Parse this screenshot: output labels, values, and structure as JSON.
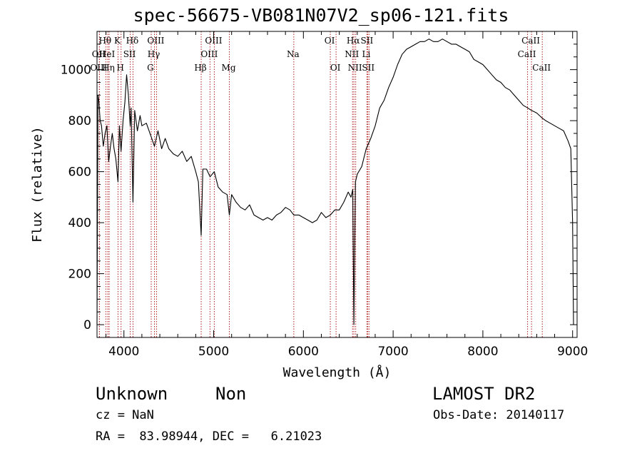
{
  "header": {
    "title": "spec-56675-VB081N07V2_sp06-121.fits"
  },
  "footer": {
    "object_class": "Unknown",
    "object_subclass": "Non",
    "survey": "LAMOST DR2",
    "redshift": "cz = NaN",
    "obs_date": "Obs-Date: 20140117",
    "coords": "RA =  83.98944, DEC =   6.21023"
  },
  "colors": {
    "spectrum": "#000000",
    "line_marker": "#b22222",
    "axes": "#000000"
  },
  "chart_data": {
    "type": "line",
    "title": "spec-56675-VB081N07V2_sp06-121.fits",
    "xlabel": "Wavelength (Å)",
    "ylabel": "Flux (relative)",
    "xlim": [
      3700,
      9050
    ],
    "ylim": [
      -50,
      1150
    ],
    "xticks": [
      4000,
      5000,
      6000,
      7000,
      8000,
      9000
    ],
    "yticks": [
      0,
      200,
      400,
      600,
      800,
      1000
    ],
    "grid": false,
    "series": [
      {
        "x": [
          3700,
          3710,
          3720,
          3735,
          3750,
          3770,
          3790,
          3810,
          3830,
          3850,
          3870,
          3890,
          3910,
          3934,
          3950,
          3968,
          3990,
          4010,
          4030,
          4050,
          4070,
          4080,
          4101,
          4120,
          4150,
          4180,
          4200,
          4250,
          4300,
          4340,
          4380,
          4420,
          4460,
          4500,
          4550,
          4600,
          4650,
          4700,
          4750,
          4800,
          4830,
          4861,
          4880,
          4920,
          4960,
          5007,
          5050,
          5100,
          5150,
          5175,
          5200,
          5250,
          5300,
          5350,
          5400,
          5450,
          5500,
          5550,
          5600,
          5650,
          5700,
          5750,
          5800,
          5850,
          5893,
          5950,
          6000,
          6050,
          6100,
          6150,
          6200,
          6250,
          6300,
          6350,
          6400,
          6450,
          6500,
          6530,
          6550,
          6563,
          6580,
          6600,
          6650,
          6700,
          6750,
          6800,
          6850,
          6900,
          6950,
          7000,
          7050,
          7100,
          7150,
          7200,
          7250,
          7300,
          7350,
          7400,
          7450,
          7500,
          7550,
          7600,
          7650,
          7700,
          7750,
          7800,
          7850,
          7900,
          7950,
          8000,
          8050,
          8100,
          8150,
          8200,
          8250,
          8300,
          8350,
          8400,
          8450,
          8500,
          8542,
          8600,
          8662,
          8700,
          8750,
          8800,
          8850,
          8900,
          8950,
          8980,
          9000,
          9010
        ],
        "y": [
          0,
          900,
          880,
          800,
          780,
          700,
          750,
          780,
          640,
          700,
          750,
          690,
          650,
          560,
          780,
          680,
          800,
          870,
          980,
          900,
          780,
          850,
          480,
          840,
          760,
          820,
          780,
          790,
          740,
          700,
          760,
          690,
          730,
          690,
          670,
          660,
          680,
          640,
          660,
          600,
          560,
          350,
          610,
          610,
          580,
          600,
          540,
          520,
          510,
          430,
          510,
          480,
          460,
          450,
          470,
          430,
          420,
          410,
          420,
          410,
          430,
          440,
          460,
          450,
          430,
          430,
          420,
          410,
          400,
          410,
          440,
          420,
          430,
          450,
          450,
          480,
          520,
          500,
          530,
          0,
          560,
          590,
          620,
          690,
          730,
          780,
          850,
          880,
          930,
          970,
          1020,
          1060,
          1080,
          1090,
          1100,
          1110,
          1110,
          1120,
          1110,
          1110,
          1120,
          1110,
          1100,
          1100,
          1090,
          1080,
          1070,
          1040,
          1030,
          1020,
          1000,
          980,
          960,
          950,
          930,
          920,
          900,
          880,
          860,
          850,
          840,
          830,
          810,
          800,
          790,
          780,
          770,
          760,
          720,
          690,
          400,
          0
        ]
      }
    ],
    "line_markers": [
      {
        "label": "Hθ",
        "x": 3798,
        "row": 0
      },
      {
        "label": "OII",
        "x": 3727,
        "row": 1
      },
      {
        "label": "OIII",
        "x": 3727,
        "row": 2
      },
      {
        "label": "HeI",
        "x": 3820,
        "row": 1
      },
      {
        "label": "Hη",
        "x": 3835,
        "row": 2
      },
      {
        "label": "K",
        "x": 3934,
        "row": 0
      },
      {
        "label": "SII",
        "x": 4070,
        "row": 1
      },
      {
        "label": "H",
        "x": 3968,
        "row": 2
      },
      {
        "label": "Hδ",
        "x": 4101,
        "row": 0
      },
      {
        "label": "OIII",
        "x": 4363,
        "row": 0
      },
      {
        "label": "Hγ",
        "x": 4340,
        "row": 1
      },
      {
        "label": "G",
        "x": 4304,
        "row": 2
      },
      {
        "label": "Hβ",
        "x": 4861,
        "row": 2
      },
      {
        "label": "OIII",
        "x": 5007,
        "row": 0
      },
      {
        "label": "OIII",
        "x": 4959,
        "row": 1
      },
      {
        "label": "Mg",
        "x": 5175,
        "row": 2
      },
      {
        "label": "Na",
        "x": 5893,
        "row": 1
      },
      {
        "label": "OI",
        "x": 6300,
        "row": 0
      },
      {
        "label": "OI",
        "x": 6364,
        "row": 2
      },
      {
        "label": "Hα",
        "x": 6563,
        "row": 0
      },
      {
        "label": "NII",
        "x": 6548,
        "row": 1
      },
      {
        "label": "NII",
        "x": 6583,
        "row": 2
      },
      {
        "label": "SII",
        "x": 6716,
        "row": 0
      },
      {
        "label": "Li",
        "x": 6708,
        "row": 1
      },
      {
        "label": "SII",
        "x": 6731,
        "row": 2
      },
      {
        "label": "CaII",
        "x": 8542,
        "row": 0
      },
      {
        "label": "CaII",
        "x": 8498,
        "row": 1
      },
      {
        "label": "CaII",
        "x": 8662,
        "row": 2
      }
    ]
  }
}
